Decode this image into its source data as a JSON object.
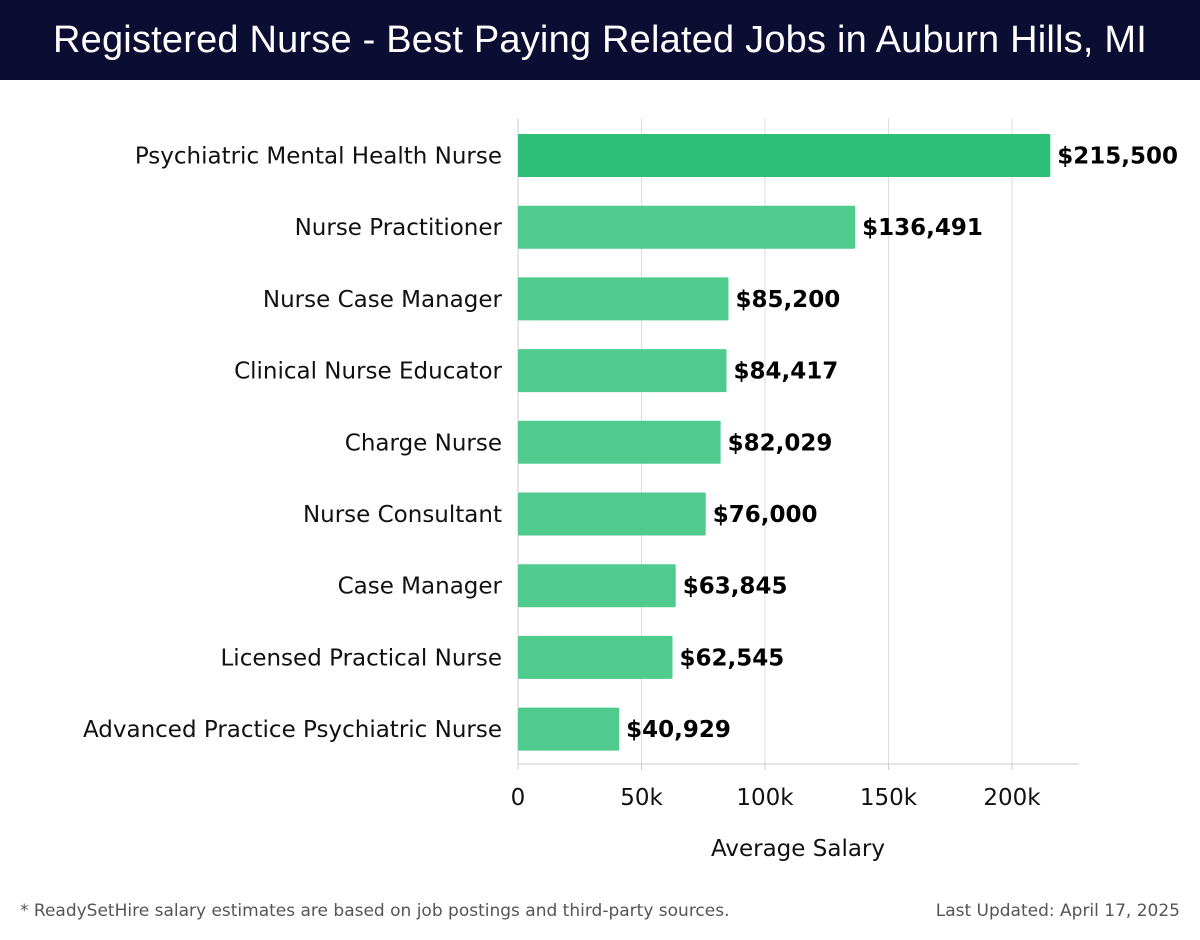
{
  "header": {
    "title": "Registered Nurse - Best Paying Related Jobs in Auburn Hills, MI"
  },
  "chart_data": {
    "type": "bar",
    "orientation": "horizontal",
    "title": "Registered Nurse - Best Paying Related Jobs in Auburn Hills, MI",
    "categories": [
      "Psychiatric Mental Health Nurse",
      "Nurse Practitioner",
      "Nurse Case Manager",
      "Clinical Nurse Educator",
      "Charge Nurse",
      "Nurse Consultant",
      "Case Manager",
      "Licensed Practical Nurse",
      "Advanced Practice Psychiatric Nurse"
    ],
    "values": [
      215500,
      136491,
      85200,
      84417,
      82029,
      76000,
      63845,
      62545,
      40929
    ],
    "value_labels": [
      "$215,500",
      "$136,491",
      "$85,200",
      "$84,417",
      "$82,029",
      "$76,000",
      "$63,845",
      "$62,545",
      "$40,929"
    ],
    "xlabel": "Average Salary",
    "ylabel": "",
    "xlim": [
      0,
      227000
    ],
    "xticks": [
      0,
      50000,
      100000,
      150000,
      200000
    ],
    "xtick_labels": [
      "0",
      "50k",
      "100k",
      "150k",
      "200k"
    ],
    "grid": true,
    "colors": {
      "top_bar": "#2dbf78",
      "bar": "#4fcb8e",
      "grid": "#dddddd",
      "axis": "#cccccc"
    }
  },
  "footer": {
    "note": "* ReadySetHire salary estimates are based on job postings and third-party sources.",
    "updated": "Last Updated: April 17, 2025"
  }
}
